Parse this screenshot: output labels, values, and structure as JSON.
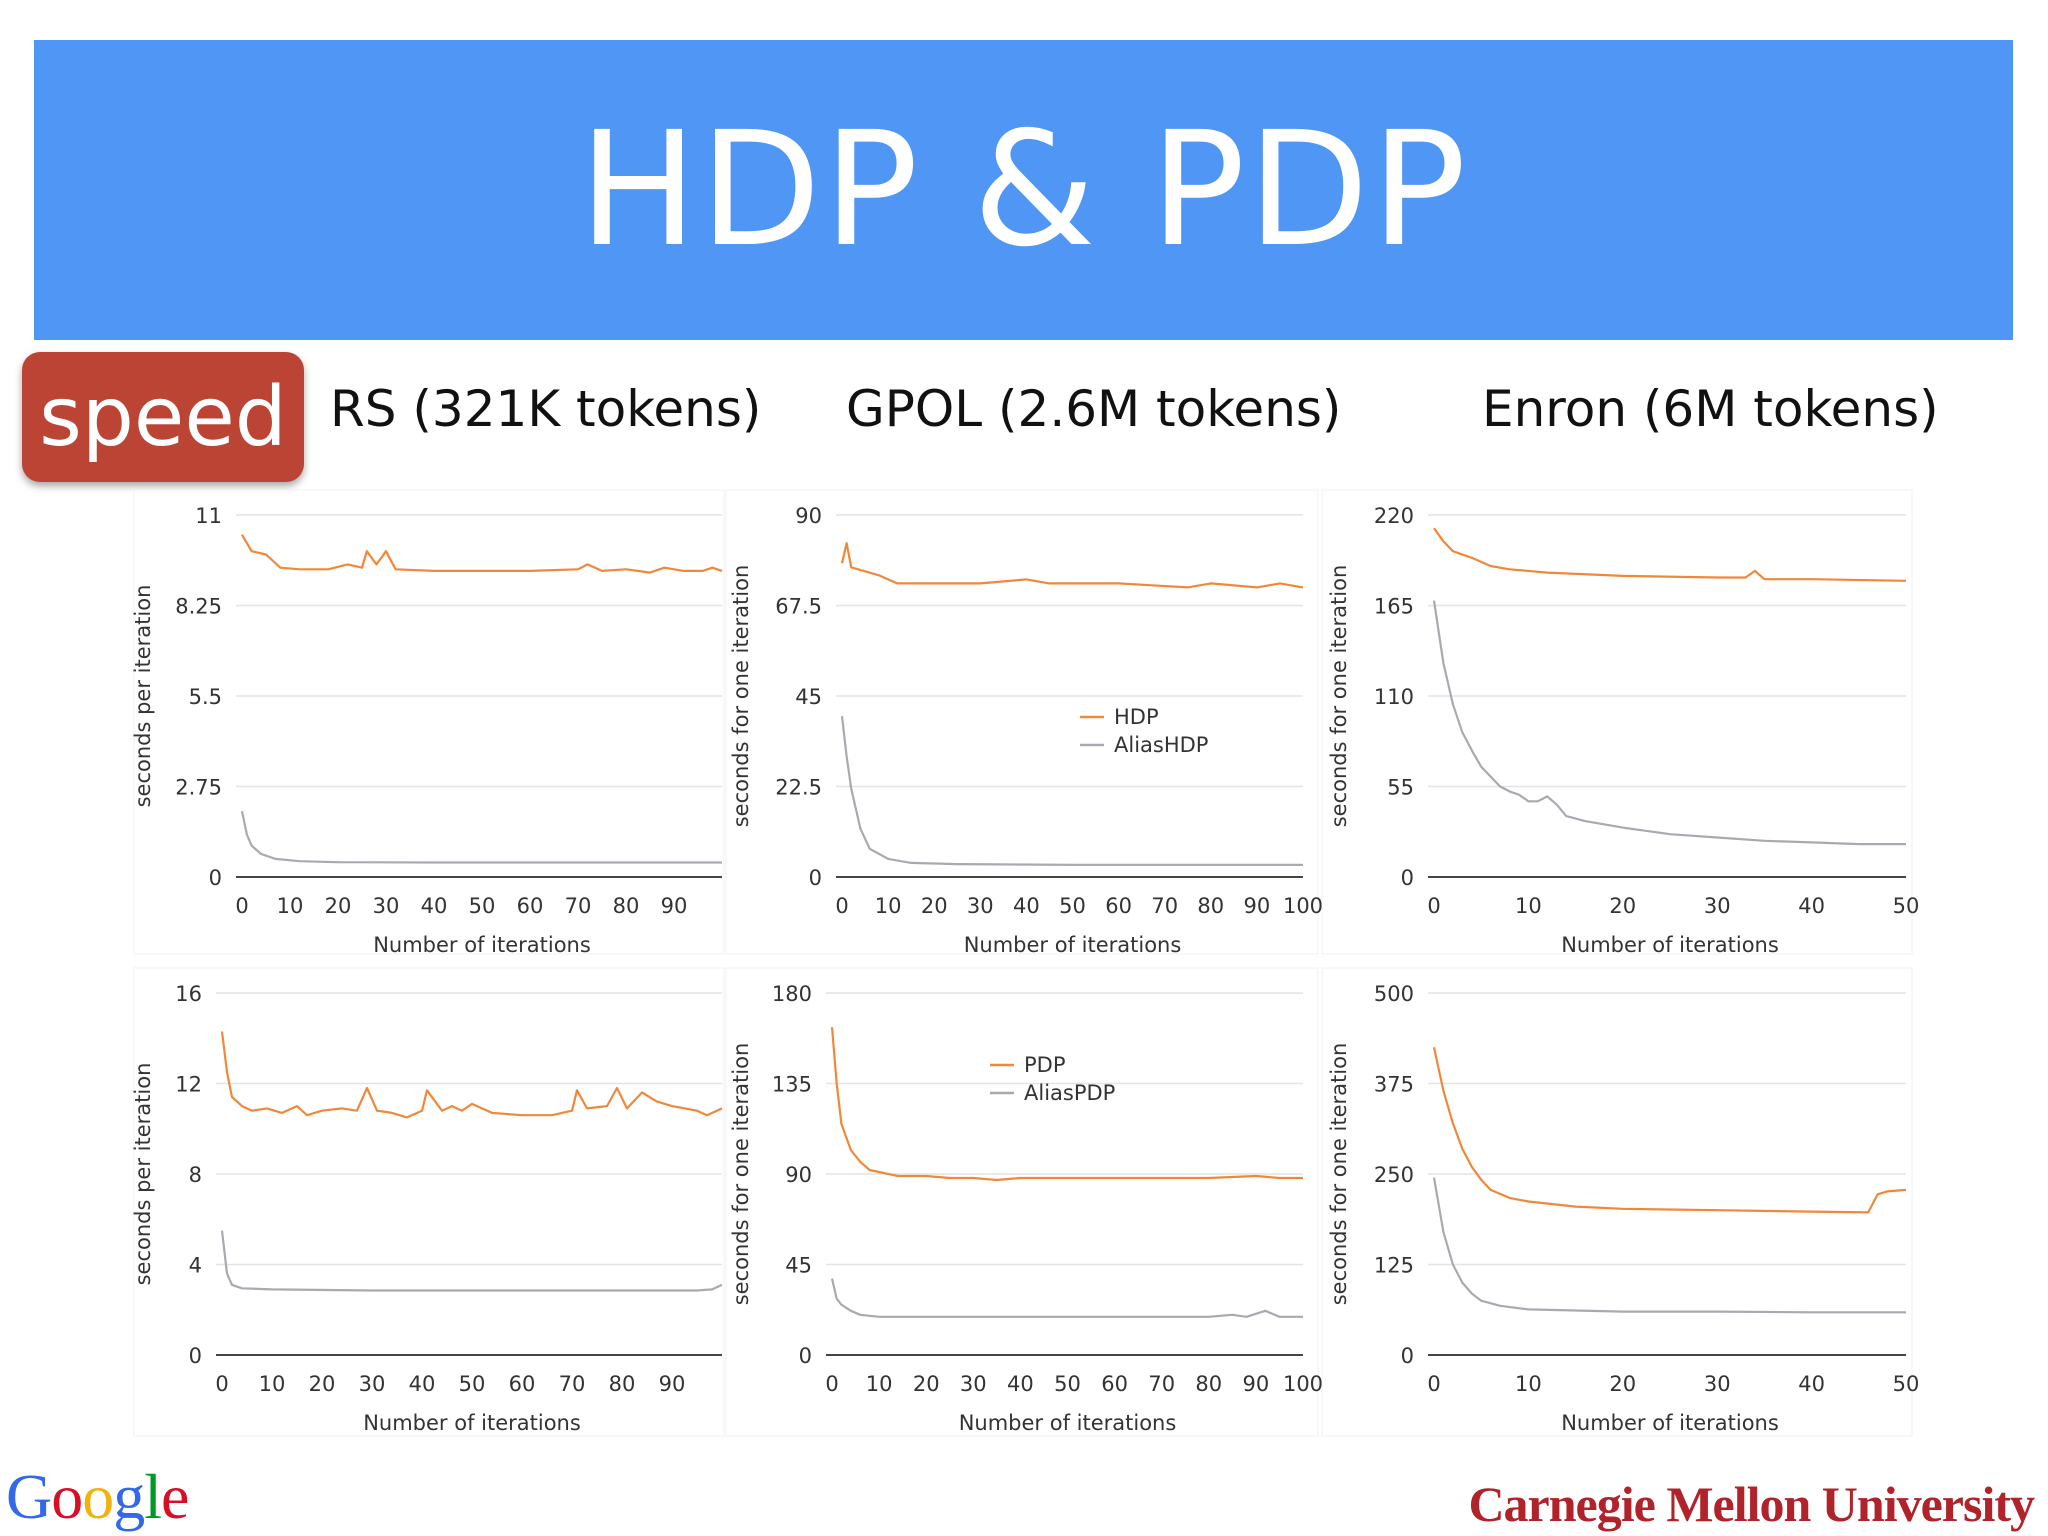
{
  "slide": {
    "title": "HDP & PDP",
    "badge": "speed",
    "dataset_titles": [
      "RS (321K tokens)",
      "GPOL (2.6M tokens)",
      "Enron (6M tokens)"
    ],
    "logos": {
      "google": "Google",
      "cmu": "Carnegie Mellon University"
    }
  },
  "colors": {
    "title_bg": "#5096f5",
    "badge_bg": "#bb4434",
    "orange": "#f0883a",
    "gray": "#a9a9b2",
    "cmu_red": "#b0232a"
  },
  "chart_data": [
    {
      "type": "line",
      "xlabel": "Number of iterations",
      "ylabel": "seconds per iteration",
      "xlim": [
        0,
        100
      ],
      "ylim": [
        0,
        11
      ],
      "xticks": [
        0,
        10,
        20,
        30,
        40,
        50,
        60,
        70,
        80,
        90
      ],
      "yticks": [
        "0",
        "2.75",
        "5.5",
        "8.25",
        "11"
      ],
      "grid": true,
      "legend": null,
      "series": [
        {
          "color": "orange",
          "points": [
            [
              0,
              10.4
            ],
            [
              2,
              9.9
            ],
            [
              5,
              9.8
            ],
            [
              8,
              9.4
            ],
            [
              12,
              9.35
            ],
            [
              18,
              9.35
            ],
            [
              22,
              9.5
            ],
            [
              25,
              9.4
            ],
            [
              26,
              9.9
            ],
            [
              28,
              9.5
            ],
            [
              30,
              9.9
            ],
            [
              32,
              9.35
            ],
            [
              40,
              9.3
            ],
            [
              60,
              9.3
            ],
            [
              70,
              9.35
            ],
            [
              72,
              9.5
            ],
            [
              75,
              9.3
            ],
            [
              80,
              9.35
            ],
            [
              85,
              9.25
            ],
            [
              88,
              9.4
            ],
            [
              92,
              9.3
            ],
            [
              96,
              9.3
            ],
            [
              98,
              9.4
            ],
            [
              100,
              9.3
            ]
          ]
        },
        {
          "color": "gray",
          "points": [
            [
              0,
              2.0
            ],
            [
              1,
              1.3
            ],
            [
              2,
              0.95
            ],
            [
              4,
              0.7
            ],
            [
              7,
              0.55
            ],
            [
              12,
              0.48
            ],
            [
              20,
              0.45
            ],
            [
              40,
              0.44
            ],
            [
              70,
              0.44
            ],
            [
              100,
              0.44
            ]
          ]
        }
      ]
    },
    {
      "type": "line",
      "xlabel": "Number of iterations",
      "ylabel": "seconds for one iteration",
      "xlim": [
        0,
        100
      ],
      "ylim": [
        0,
        90
      ],
      "xticks": [
        0,
        10,
        20,
        30,
        40,
        50,
        60,
        70,
        80,
        90,
        100
      ],
      "yticks": [
        "0",
        "22.5",
        "45",
        "67.5",
        "90"
      ],
      "grid": true,
      "legend": [
        "HDP",
        "AliasHDP"
      ],
      "series": [
        {
          "name": "HDP",
          "color": "orange",
          "points": [
            [
              0,
              78
            ],
            [
              1,
              83
            ],
            [
              2,
              77
            ],
            [
              5,
              76
            ],
            [
              8,
              75
            ],
            [
              12,
              73
            ],
            [
              20,
              73
            ],
            [
              30,
              73
            ],
            [
              40,
              74
            ],
            [
              45,
              73
            ],
            [
              60,
              73
            ],
            [
              75,
              72
            ],
            [
              80,
              73
            ],
            [
              90,
              72
            ],
            [
              95,
              73
            ],
            [
              100,
              72
            ]
          ]
        },
        {
          "name": "AliasHDP",
          "color": "gray",
          "points": [
            [
              0,
              40
            ],
            [
              1,
              30
            ],
            [
              2,
              22
            ],
            [
              4,
              12
            ],
            [
              6,
              7
            ],
            [
              10,
              4.5
            ],
            [
              15,
              3.5
            ],
            [
              25,
              3.2
            ],
            [
              50,
              3
            ],
            [
              75,
              3
            ],
            [
              100,
              3
            ]
          ]
        }
      ]
    },
    {
      "type": "line",
      "xlabel": "Number of iterations",
      "ylabel": "seconds for one iteration",
      "xlim": [
        0,
        50
      ],
      "ylim": [
        0,
        220
      ],
      "xticks": [
        0,
        10,
        20,
        30,
        40,
        50
      ],
      "yticks": [
        "0",
        "55",
        "110",
        "165",
        "220"
      ],
      "grid": true,
      "legend": null,
      "series": [
        {
          "color": "orange",
          "points": [
            [
              0,
              212
            ],
            [
              1,
              204
            ],
            [
              2,
              198
            ],
            [
              4,
              194
            ],
            [
              6,
              189
            ],
            [
              8,
              187
            ],
            [
              12,
              185
            ],
            [
              20,
              183
            ],
            [
              30,
              182
            ],
            [
              33,
              182
            ],
            [
              34,
              186
            ],
            [
              35,
              181
            ],
            [
              40,
              181
            ],
            [
              50,
              180
            ]
          ]
        },
        {
          "color": "gray",
          "points": [
            [
              0,
              168
            ],
            [
              1,
              130
            ],
            [
              2,
              105
            ],
            [
              3,
              88
            ],
            [
              4,
              77
            ],
            [
              5,
              67
            ],
            [
              7,
              55
            ],
            [
              8,
              52
            ],
            [
              9,
              50
            ],
            [
              10,
              46
            ],
            [
              11,
              46
            ],
            [
              12,
              49
            ],
            [
              13,
              44
            ],
            [
              14,
              37
            ],
            [
              16,
              34
            ],
            [
              20,
              30
            ],
            [
              25,
              26
            ],
            [
              30,
              24
            ],
            [
              35,
              22
            ],
            [
              40,
              21
            ],
            [
              45,
              20
            ],
            [
              50,
              20
            ]
          ]
        }
      ]
    },
    {
      "type": "line",
      "xlabel": "Number of iterations",
      "ylabel": "seconds per iteration",
      "xlim": [
        0,
        100
      ],
      "ylim": [
        0,
        16
      ],
      "xticks": [
        0,
        10,
        20,
        30,
        40,
        50,
        60,
        70,
        80,
        90
      ],
      "yticks": [
        "0",
        "4",
        "8",
        "12",
        "16"
      ],
      "grid": true,
      "legend": null,
      "series": [
        {
          "color": "orange",
          "points": [
            [
              0,
              14.3
            ],
            [
              1,
              12.5
            ],
            [
              2,
              11.4
            ],
            [
              4,
              11.0
            ],
            [
              6,
              10.8
            ],
            [
              9,
              10.9
            ],
            [
              12,
              10.7
            ],
            [
              15,
              11.0
            ],
            [
              17,
              10.6
            ],
            [
              20,
              10.8
            ],
            [
              24,
              10.9
            ],
            [
              27,
              10.8
            ],
            [
              29,
              11.8
            ],
            [
              31,
              10.8
            ],
            [
              34,
              10.7
            ],
            [
              37,
              10.5
            ],
            [
              40,
              10.8
            ],
            [
              41,
              11.7
            ],
            [
              44,
              10.8
            ],
            [
              46,
              11.0
            ],
            [
              48,
              10.8
            ],
            [
              50,
              11.1
            ],
            [
              54,
              10.7
            ],
            [
              60,
              10.6
            ],
            [
              66,
              10.6
            ],
            [
              70,
              10.8
            ],
            [
              71,
              11.7
            ],
            [
              73,
              10.9
            ],
            [
              77,
              11.0
            ],
            [
              79,
              11.8
            ],
            [
              81,
              10.9
            ],
            [
              84,
              11.6
            ],
            [
              87,
              11.2
            ],
            [
              90,
              11.0
            ],
            [
              95,
              10.8
            ],
            [
              97,
              10.6
            ],
            [
              100,
              10.9
            ]
          ]
        },
        {
          "color": "gray",
          "points": [
            [
              0,
              5.5
            ],
            [
              1,
              3.6
            ],
            [
              2,
              3.1
            ],
            [
              4,
              2.95
            ],
            [
              10,
              2.9
            ],
            [
              30,
              2.85
            ],
            [
              60,
              2.85
            ],
            [
              95,
              2.85
            ],
            [
              98,
              2.9
            ],
            [
              100,
              3.1
            ]
          ]
        }
      ]
    },
    {
      "type": "line",
      "xlabel": "Number of iterations",
      "ylabel": "seconds for one iteration",
      "xlim": [
        0,
        100
      ],
      "ylim": [
        0,
        180
      ],
      "xticks": [
        0,
        10,
        20,
        30,
        40,
        50,
        60,
        70,
        80,
        90,
        100
      ],
      "yticks": [
        "0",
        "45",
        "90",
        "135",
        "180"
      ],
      "grid": true,
      "legend": [
        "PDP",
        "AliasPDP"
      ],
      "series": [
        {
          "name": "PDP",
          "color": "orange",
          "points": [
            [
              0,
              163
            ],
            [
              1,
              135
            ],
            [
              2,
              115
            ],
            [
              4,
              102
            ],
            [
              6,
              96
            ],
            [
              8,
              92
            ],
            [
              10,
              91
            ],
            [
              14,
              89
            ],
            [
              20,
              89
            ],
            [
              25,
              88
            ],
            [
              30,
              88
            ],
            [
              35,
              87
            ],
            [
              40,
              88
            ],
            [
              50,
              88
            ],
            [
              60,
              88
            ],
            [
              70,
              88
            ],
            [
              80,
              88
            ],
            [
              90,
              89
            ],
            [
              95,
              88
            ],
            [
              100,
              88
            ]
          ]
        },
        {
          "name": "AliasPDP",
          "color": "gray",
          "points": [
            [
              0,
              38
            ],
            [
              1,
              28
            ],
            [
              2,
              25
            ],
            [
              4,
              22
            ],
            [
              6,
              20
            ],
            [
              10,
              19
            ],
            [
              30,
              19
            ],
            [
              60,
              19
            ],
            [
              80,
              19
            ],
            [
              85,
              20
            ],
            [
              88,
              19
            ],
            [
              92,
              22
            ],
            [
              95,
              19
            ],
            [
              100,
              19
            ]
          ]
        }
      ]
    },
    {
      "type": "line",
      "xlabel": "Number of iterations",
      "ylabel": "seconds for one iteration",
      "xlim": [
        0,
        50
      ],
      "ylim": [
        0,
        500
      ],
      "xticks": [
        0,
        10,
        20,
        30,
        40,
        50
      ],
      "yticks": [
        "0",
        "125",
        "250",
        "375",
        "500"
      ],
      "grid": true,
      "legend": null,
      "series": [
        {
          "color": "orange",
          "points": [
            [
              0,
              425
            ],
            [
              1,
              365
            ],
            [
              2,
              320
            ],
            [
              3,
              285
            ],
            [
              4,
              260
            ],
            [
              5,
              242
            ],
            [
              6,
              228
            ],
            [
              8,
              217
            ],
            [
              10,
              212
            ],
            [
              15,
              205
            ],
            [
              20,
              202
            ],
            [
              30,
              200
            ],
            [
              40,
              198
            ],
            [
              46,
              197
            ],
            [
              47,
              222
            ],
            [
              48,
              226
            ],
            [
              50,
              228
            ]
          ]
        },
        {
          "color": "gray",
          "points": [
            [
              0,
              245
            ],
            [
              1,
              170
            ],
            [
              2,
              125
            ],
            [
              3,
              100
            ],
            [
              4,
              85
            ],
            [
              5,
              75
            ],
            [
              7,
              68
            ],
            [
              10,
              63
            ],
            [
              20,
              60
            ],
            [
              30,
              60
            ],
            [
              40,
              59
            ],
            [
              50,
              59
            ]
          ]
        }
      ]
    }
  ]
}
